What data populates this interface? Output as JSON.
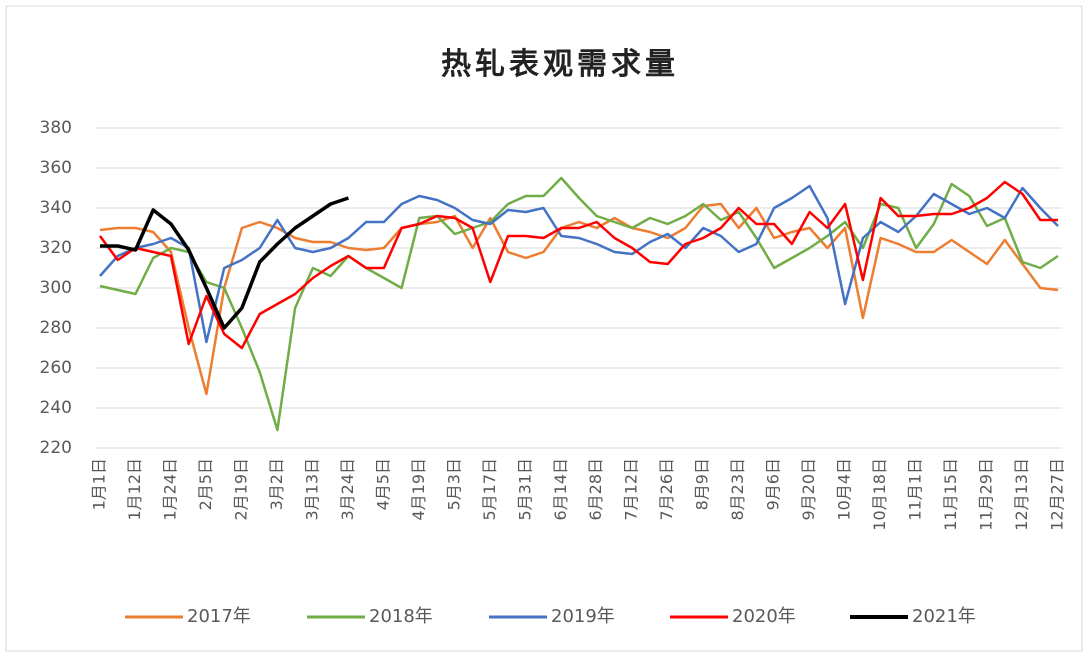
{
  "chart_data": {
    "type": "line",
    "title": "热轧表观需求量",
    "categories": [
      "1月1日",
      null,
      "1月12日",
      null,
      "1月24日",
      null,
      "2月5日",
      null,
      "2月19日",
      null,
      "3月2日",
      null,
      "3月13日",
      null,
      "3月24日",
      null,
      "4月5日",
      null,
      "4月19日",
      null,
      "5月3日",
      null,
      "5月17日",
      null,
      "5月31日",
      null,
      "6月14日",
      null,
      "6月28日",
      null,
      "7月12日",
      null,
      "7月26日",
      null,
      "8月9日",
      null,
      "8月23日",
      null,
      "9月6日",
      null,
      "9月20日",
      null,
      "10月4日",
      null,
      "10月18日",
      null,
      "11月1日",
      null,
      "11月15日",
      null,
      "11月29日",
      null,
      "12月13日",
      null,
      "12月27日"
    ],
    "series": [
      {
        "name": "2017年",
        "color": "#ed7d31",
        "values": [
          329,
          330,
          330,
          328,
          318,
          280,
          247,
          300,
          330,
          333,
          330,
          325,
          323,
          323,
          320,
          319,
          320,
          330,
          332,
          333,
          336,
          320,
          335,
          318,
          315,
          318,
          330,
          333,
          330,
          335,
          330,
          328,
          325,
          330,
          341,
          342,
          330,
          340,
          325,
          328,
          330,
          320,
          330,
          285,
          325,
          322,
          318,
          318,
          324,
          318,
          312,
          324,
          312,
          300,
          299
        ]
      },
      {
        "name": "2018年",
        "color": "#70ad47",
        "values": [
          301,
          299,
          297,
          315,
          320,
          318,
          303,
          300,
          280,
          258,
          229,
          290,
          310,
          306,
          316,
          310,
          305,
          300,
          335,
          336,
          327,
          330,
          333,
          342,
          346,
          346,
          355,
          345,
          336,
          333,
          330,
          335,
          332,
          336,
          342,
          334,
          338,
          325,
          310,
          315,
          320,
          326,
          333,
          320,
          342,
          340,
          320,
          332,
          352,
          346,
          331,
          335,
          313,
          310,
          316
        ]
      },
      {
        "name": "2019年",
        "color": "#4472c4",
        "values": [
          306,
          316,
          320,
          322,
          325,
          320,
          273,
          310,
          314,
          320,
          334,
          320,
          318,
          320,
          325,
          333,
          333,
          342,
          346,
          344,
          340,
          334,
          332,
          339,
          338,
          340,
          326,
          325,
          322,
          318,
          317,
          323,
          327,
          320,
          330,
          326,
          318,
          322,
          340,
          345,
          351,
          335,
          292,
          325,
          333,
          328,
          336,
          347,
          342,
          337,
          340,
          335,
          350,
          340,
          331
        ]
      },
      {
        "name": "2020年",
        "color": "#ff0000",
        "values": [
          326,
          314,
          320,
          318,
          316,
          272,
          296,
          277,
          270,
          287,
          292,
          297,
          305,
          311,
          316,
          310,
          310,
          330,
          332,
          336,
          335,
          330,
          303,
          326,
          326,
          325,
          330,
          330,
          333,
          325,
          320,
          313,
          312,
          322,
          325,
          330,
          340,
          332,
          332,
          322,
          338,
          330,
          342,
          304,
          345,
          336,
          336,
          337,
          337,
          340,
          345,
          353,
          347,
          334,
          334
        ]
      },
      {
        "name": "2021年",
        "color": "#000000",
        "values": [
          321,
          321,
          319,
          339,
          332,
          319,
          300,
          280,
          290,
          313,
          322,
          330,
          336,
          342,
          345,
          null,
          null,
          null,
          null,
          null,
          null,
          null,
          null,
          null,
          null,
          null,
          null,
          null,
          null,
          null,
          null,
          null,
          null,
          null,
          null,
          null,
          null,
          null,
          null,
          null,
          null,
          null,
          null,
          null,
          null,
          null,
          null,
          null,
          null,
          null,
          null,
          null,
          null,
          null,
          null
        ]
      }
    ],
    "ylim": [
      220,
      380
    ],
    "yticks": [
      220,
      240,
      260,
      280,
      300,
      320,
      340,
      360,
      380
    ],
    "grid": true
  }
}
